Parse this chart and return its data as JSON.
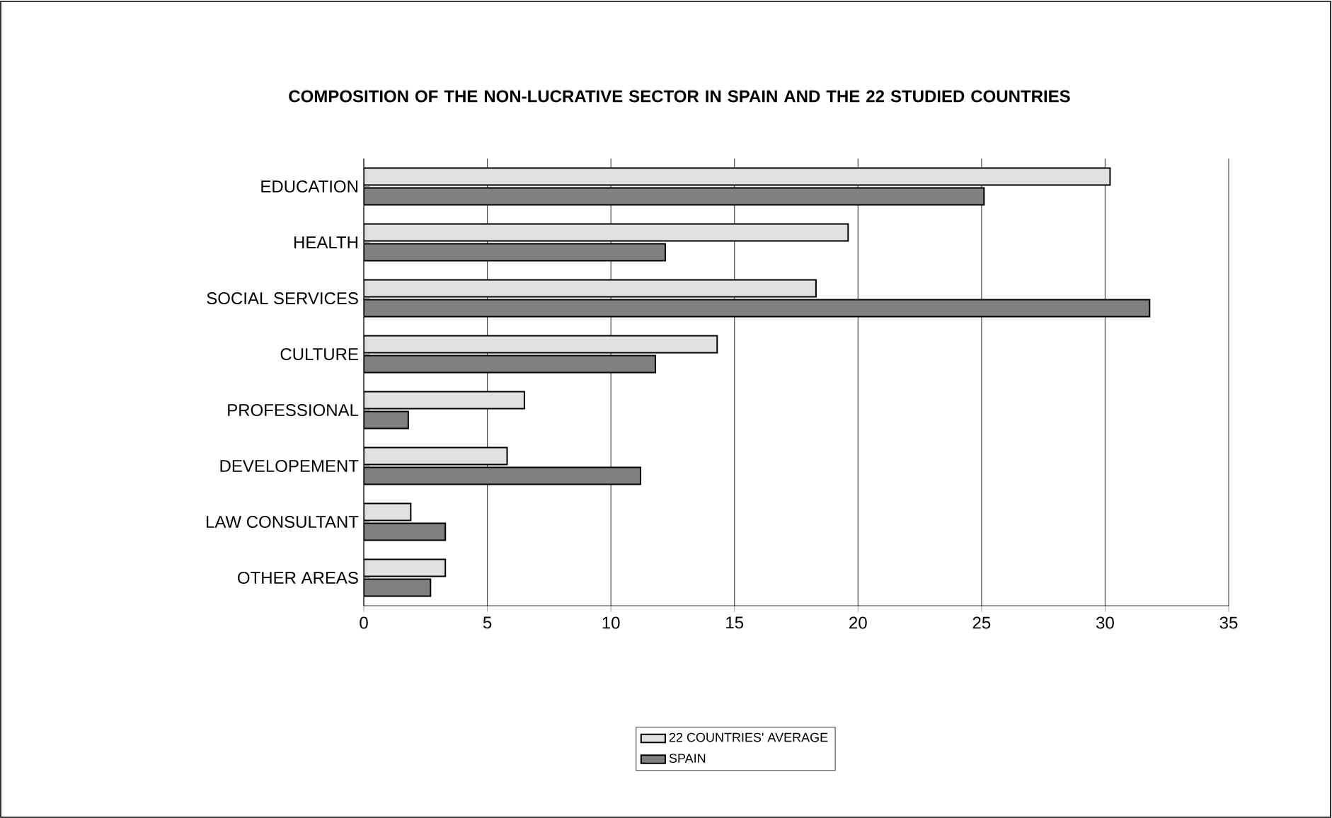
{
  "chart_data": {
    "type": "bar",
    "orientation": "horizontal",
    "title": "COMPOSITION OF THE NON-LUCRATIVE SECTOR IN SPAIN AND THE 22 STUDIED COUNTRIES",
    "categories": [
      "EDUCATION",
      "HEALTH",
      "SOCIAL SERVICES",
      "CULTURE",
      "PROFESSIONAL",
      "DEVELOPEMENT",
      "LAW CONSULTANT",
      "OTHER AREAS"
    ],
    "series": [
      {
        "name": "22 COUNTRIES' AVERAGE",
        "color": "#e0e0e0",
        "values": [
          30.2,
          19.6,
          18.3,
          14.3,
          6.5,
          5.8,
          1.9,
          3.3
        ]
      },
      {
        "name": "SPAIN",
        "color": "#808080",
        "values": [
          25.1,
          12.2,
          31.8,
          11.8,
          1.8,
          11.2,
          3.3,
          2.7
        ]
      }
    ],
    "xlim": [
      0,
      35
    ],
    "xticks": [
      0,
      5,
      10,
      15,
      20,
      25,
      30,
      35
    ],
    "grid": "x",
    "legend": "bottom"
  }
}
